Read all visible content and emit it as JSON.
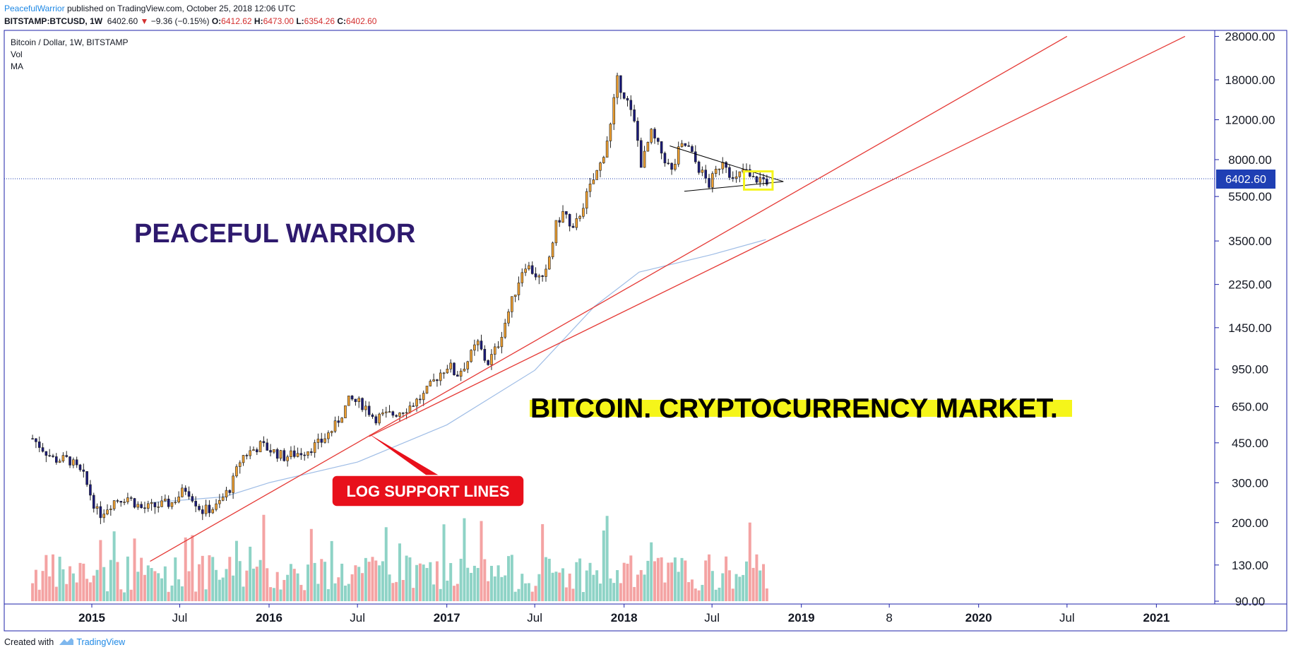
{
  "header": {
    "author": "PeacefulWarrior",
    "published": "published on TradingView.com, October 25, 2018 12:06 UTC",
    "symbol": "BITSTAMP:BTCUSD, 1W",
    "last": "6402.60",
    "arrow": "▼",
    "change": "−9.36 (−0.15%)",
    "o_label": "O:",
    "o_value": "6412.62",
    "h_label": "H:",
    "h_value": "6473.00",
    "l_label": "L:",
    "l_value": "6354.26",
    "c_label": "C:",
    "c_value": "6402.60"
  },
  "legend": {
    "title": "Bitcoin / Dollar, 1W, BITSTAMP",
    "vol": "Vol",
    "ma": "MA"
  },
  "annotations": {
    "warrior": "PEACEFUL WARRIOR",
    "market": "BITCOIN. CRYPTOCURRENCY MARKET.",
    "callout": "LOG SUPPORT LINES"
  },
  "price_label": "6402.60",
  "footer": {
    "created": "Created with",
    "brand": "TradingView"
  },
  "colors": {
    "up": "#f0a030",
    "down": "#1a1a7a",
    "vol_up": "#8ed3c6",
    "vol_down": "#f4a3a3",
    "support": "#e53935",
    "ma": "#9fbde6",
    "axis": "#1e22aa",
    "price_tag": "#1f3fb4",
    "warrior_text": "#2e1a6e",
    "highlight": "#f5f51a"
  },
  "chart_data": {
    "type": "candlestick",
    "scale": "log",
    "title": "Bitcoin / Dollar, 1W, BITSTAMP",
    "y_ticks": [
      "28000.00",
      "18000.00",
      "12000.00",
      "8000.00",
      "5500.00",
      "3500.00",
      "2250.00",
      "1450.00",
      "950.00",
      "650.00",
      "450.00",
      "300.00",
      "200.00",
      "130.00",
      "90.00"
    ],
    "x_ticks": [
      "2015",
      "Jul",
      "2016",
      "Jul",
      "2017",
      "Jul",
      "2018",
      "Jul",
      "2019",
      "8",
      "2020",
      "Jul",
      "2021"
    ],
    "current_price": 6402.6,
    "price_path": [
      [
        "2014-09-01",
        470
      ],
      [
        "2014-10-15",
        380
      ],
      [
        "2014-11-15",
        380
      ],
      [
        "2014-12-15",
        320
      ],
      [
        "2015-01-15",
        215
      ],
      [
        "2015-02-15",
        250
      ],
      [
        "2015-03-15",
        260
      ],
      [
        "2015-04-15",
        230
      ],
      [
        "2015-05-15",
        237
      ],
      [
        "2015-06-15",
        245
      ],
      [
        "2015-07-15",
        285
      ],
      [
        "2015-08-15",
        225
      ],
      [
        "2015-09-15",
        235
      ],
      [
        "2015-10-15",
        290
      ],
      [
        "2015-11-05",
        390
      ],
      [
        "2015-12-15",
        440
      ],
      [
        "2016-02-01",
        390
      ],
      [
        "2016-03-15",
        415
      ],
      [
        "2016-04-15",
        450
      ],
      [
        "2016-05-15",
        530
      ],
      [
        "2016-06-15",
        700
      ],
      [
        "2016-07-15",
        660
      ],
      [
        "2016-08-05",
        580
      ],
      [
        "2016-09-15",
        605
      ],
      [
        "2016-10-15",
        650
      ],
      [
        "2016-11-15",
        730
      ],
      [
        "2016-12-15",
        900
      ],
      [
        "2017-01-05",
        1000
      ],
      [
        "2017-01-20",
        890
      ],
      [
        "2017-02-15",
        1050
      ],
      [
        "2017-03-05",
        1250
      ],
      [
        "2017-03-25",
        1000
      ],
      [
        "2017-04-15",
        1200
      ],
      [
        "2017-05-15",
        1900
      ],
      [
        "2017-06-10",
        2800
      ],
      [
        "2017-07-10",
        2400
      ],
      [
        "2017-07-20",
        2300
      ],
      [
        "2017-08-15",
        4200
      ],
      [
        "2017-09-01",
        4800
      ],
      [
        "2017-09-15",
        3700
      ],
      [
        "2017-10-15",
        5500
      ],
      [
        "2017-11-15",
        7800
      ],
      [
        "2017-12-05",
        11500
      ],
      [
        "2017-12-17",
        18000
      ],
      [
        "2018-01-05",
        15000
      ],
      [
        "2018-01-25",
        11000
      ],
      [
        "2018-02-06",
        7500
      ],
      [
        "2018-02-25",
        10500
      ],
      [
        "2018-03-20",
        8500
      ],
      [
        "2018-04-10",
        7000
      ],
      [
        "2018-04-25",
        9000
      ],
      [
        "2018-05-10",
        9300
      ],
      [
        "2018-06-01",
        7500
      ],
      [
        "2018-06-25",
        6200
      ],
      [
        "2018-07-25",
        8200
      ],
      [
        "2018-08-15",
        6300
      ],
      [
        "2018-09-05",
        7300
      ],
      [
        "2018-09-20",
        6500
      ],
      [
        "2018-10-10",
        6600
      ],
      [
        "2018-10-25",
        6402.6
      ]
    ],
    "volume_shown": true,
    "moving_average": [
      [
        "2015-05-01",
        245
      ],
      [
        "2015-10-01",
        260
      ],
      [
        "2016-01-01",
        300
      ],
      [
        "2016-07-01",
        370
      ],
      [
        "2017-01-01",
        540
      ],
      [
        "2017-07-01",
        940
      ],
      [
        "2017-11-01",
        1800
      ],
      [
        "2018-02-01",
        2550
      ],
      [
        "2018-07-01",
        3050
      ],
      [
        "2018-10-20",
        3550
      ]
    ],
    "support_lines": [
      {
        "from": [
          "2015-05-01",
          135
        ],
        "to": [
          "2020-07-01",
          28000
        ]
      },
      {
        "from": [
          "2016-07-25",
          480
        ],
        "to": [
          "2021-03-01",
          28000
        ]
      }
    ],
    "triangle": {
      "upper": [
        [
          "2018-04-05",
          9200
        ],
        [
          "2018-11-25",
          6400
        ]
      ],
      "lower": [
        [
          "2018-05-05",
          5800
        ],
        [
          "2018-11-25",
          6400
        ]
      ]
    },
    "grid": false
  }
}
